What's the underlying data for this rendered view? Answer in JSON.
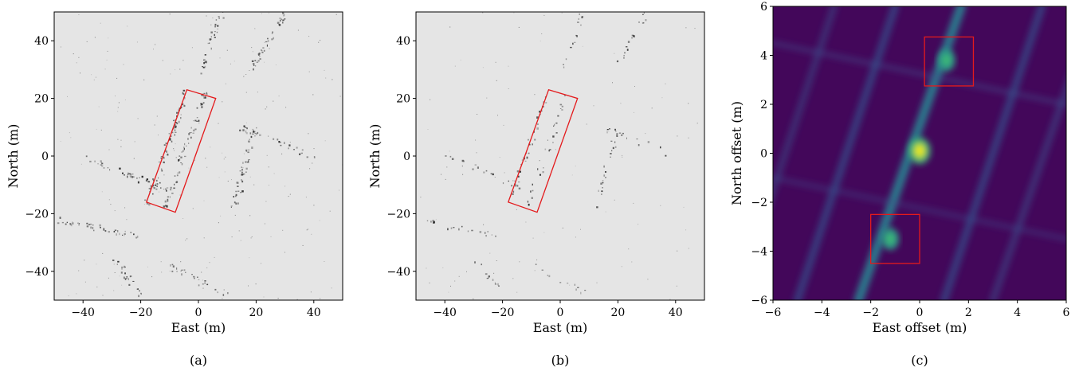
{
  "chart_data": [
    {
      "type": "heatmap",
      "caption": "(a)",
      "xlabel": "East (m)",
      "ylabel": "North (m)",
      "xlim": [
        -50,
        50
      ],
      "ylim": [
        -50,
        50
      ],
      "xticks": [
        -40,
        -20,
        0,
        20,
        40
      ],
      "yticks": [
        -40,
        -20,
        0,
        20,
        40
      ],
      "background_color": "#e5e5e5",
      "box_color": "#e41a1c",
      "box_corners": [
        [
          -4,
          23
        ],
        [
          6,
          20
        ],
        [
          -8,
          -19.5
        ],
        [
          -18,
          -16
        ]
      ]
    },
    {
      "type": "heatmap",
      "caption": "(b)",
      "xlabel": "East (m)",
      "ylabel": "North (m)",
      "xlim": [
        -50,
        50
      ],
      "ylim": [
        -50,
        50
      ],
      "xticks": [
        -40,
        -20,
        0,
        20,
        40
      ],
      "yticks": [
        -40,
        -20,
        0,
        20,
        40
      ],
      "background_color": "#e5e5e5",
      "box_color": "#e41a1c",
      "box_corners": [
        [
          -4,
          23
        ],
        [
          6,
          20
        ],
        [
          -8,
          -19.5
        ],
        [
          -18,
          -16
        ]
      ]
    },
    {
      "type": "heatmap",
      "caption": "(c)",
      "xlabel": "East offset (m)",
      "ylabel": "North offset (m)",
      "xlim": [
        -6,
        6
      ],
      "ylim": [
        -6,
        6
      ],
      "xticks": [
        -6,
        -4,
        -2,
        0,
        2,
        4,
        6
      ],
      "yticks": [
        -6,
        -4,
        -2,
        0,
        2,
        4,
        6
      ],
      "colormap": "viridis",
      "box_color": "#e41a1c",
      "peaks": [
        {
          "x": 0,
          "y": 0.1,
          "strength": 1.0
        },
        {
          "x": 1.1,
          "y": 3.8,
          "strength": 0.55
        },
        {
          "x": -1.2,
          "y": -3.5,
          "strength": 0.5
        }
      ],
      "boxes": [
        {
          "x0": 0.2,
          "x1": 2.2,
          "y0": 2.75,
          "y1": 4.75
        },
        {
          "x0": -2.0,
          "x1": 0.0,
          "y0": -4.5,
          "y1": -2.5
        }
      ]
    }
  ]
}
